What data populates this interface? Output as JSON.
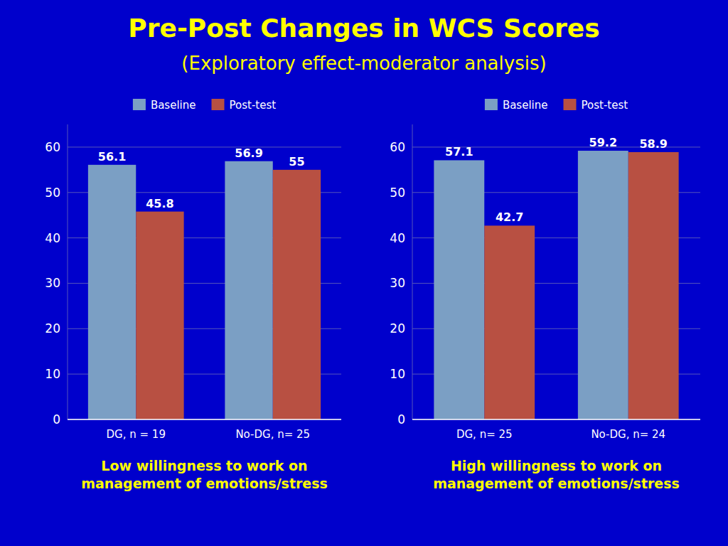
{
  "title": "Pre-Post Changes in WCS Scores",
  "subtitle": "(Exploratory effect-moderator analysis)",
  "chart_data": [
    {
      "type": "bar",
      "subtitle": "Low willingness to work on\nmanagement of emotions/stress",
      "categories": [
        "DG, n = 19",
        "No-DG, n= 25"
      ],
      "series": [
        {
          "name": "Baseline",
          "color": "#7B9FC4",
          "values": [
            56.1,
            56.9
          ]
        },
        {
          "name": "Post-test",
          "color": "#B85042",
          "values": [
            45.8,
            55
          ]
        }
      ],
      "ylim": [
        0,
        65
      ],
      "yticks": [
        0,
        10,
        20,
        30,
        40,
        50,
        60
      ],
      "grid": true,
      "legend": "top",
      "data_labels": true
    },
    {
      "type": "bar",
      "subtitle": "High willingness to work on\nmanagement of emotions/stress",
      "categories": [
        "DG, n= 25",
        "No-DG, n= 24"
      ],
      "series": [
        {
          "name": "Baseline",
          "color": "#7B9FC4",
          "values": [
            57.1,
            59.2
          ]
        },
        {
          "name": "Post-test",
          "color": "#B85042",
          "values": [
            42.7,
            58.9
          ]
        }
      ],
      "ylim": [
        0,
        65
      ],
      "yticks": [
        0,
        10,
        20,
        30,
        40,
        50,
        60
      ],
      "grid": true,
      "legend": "top",
      "data_labels": true
    }
  ]
}
